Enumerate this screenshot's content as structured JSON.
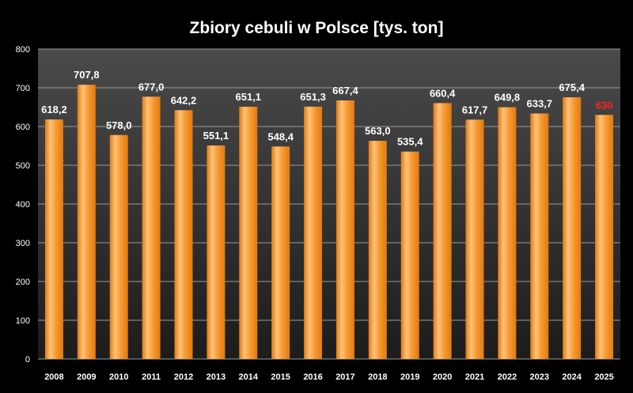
{
  "chart_data": {
    "type": "bar",
    "title": "Zbiory cebuli w Polsce [tys. ton]",
    "xlabel": "",
    "ylabel": "",
    "categories": [
      "2008",
      "2009",
      "2010",
      "2011",
      "2012",
      "2013",
      "2014",
      "2015",
      "2016",
      "2017",
      "2018",
      "2019",
      "2020",
      "2021",
      "2022",
      "2023",
      "2024",
      "2025"
    ],
    "values": [
      618.2,
      707.8,
      578.0,
      677.0,
      642.2,
      551.1,
      651.1,
      548.4,
      651.3,
      667.4,
      563.0,
      535.4,
      660.4,
      617.7,
      649.8,
      633.7,
      675.4,
      630
    ],
    "value_labels": [
      "618,2",
      "707,8",
      "578,0",
      "677,0",
      "642,2",
      "551,1",
      "651,1",
      "548,4",
      "651,3",
      "667,4",
      "563,0",
      "535,4",
      "660,4",
      "617,7",
      "649,8",
      "633,7",
      "675,4",
      "630"
    ],
    "highlight_index": 17,
    "ylim": [
      0,
      800
    ],
    "yticks": [
      0,
      100,
      200,
      300,
      400,
      500,
      600,
      700,
      800
    ],
    "grid": true,
    "legend": "none"
  },
  "colors": {
    "background": "#000000",
    "plot_top": "#4a4a4a",
    "plot_bottom": "#1c1c1c",
    "bar_edge": "#e07a10",
    "bar_light": "#ffc27a",
    "bar_main": "#f79a32",
    "gridline": "#9a9a9a",
    "text": "#ffffff",
    "highlight_label": "#ff2020"
  }
}
